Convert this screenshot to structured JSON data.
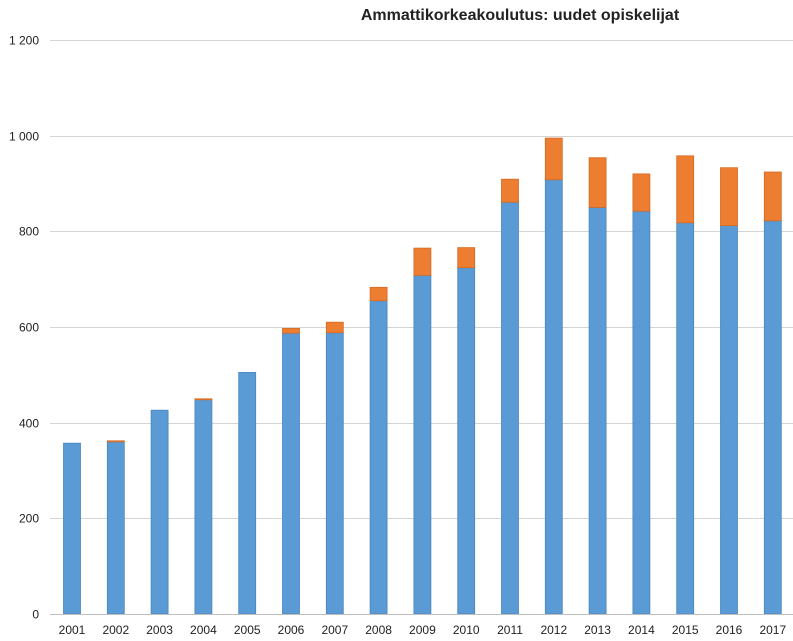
{
  "chart_data": {
    "type": "bar",
    "stacked": true,
    "title": "Ammattikorkeakoulutus: uudet opiskelijat",
    "xlabel": "",
    "ylabel": "",
    "ylim": [
      0,
      1200
    ],
    "yticks": [
      0,
      200,
      400,
      600,
      800,
      1000,
      1200
    ],
    "ytick_labels": [
      "0",
      "200",
      "400",
      "600",
      "800",
      "1 000",
      "1 200"
    ],
    "grid": true,
    "legend": "none",
    "categories": [
      "2001",
      "2002",
      "2003",
      "2004",
      "2005",
      "2006",
      "2007",
      "2008",
      "2009",
      "2010",
      "2011",
      "2012",
      "2013",
      "2014",
      "2015",
      "2016",
      "2017"
    ],
    "series": [
      {
        "color": "#5b9bd5",
        "values": [
          357,
          360,
          426,
          448,
          505,
          587,
          588,
          655,
          708,
          724,
          861,
          908,
          850,
          842,
          818,
          812,
          822
        ]
      },
      {
        "color": "#ed7d31",
        "values": [
          0,
          2,
          0,
          2,
          0,
          10,
          22,
          28,
          57,
          42,
          48,
          87,
          104,
          78,
          140,
          121,
          102
        ]
      }
    ]
  }
}
